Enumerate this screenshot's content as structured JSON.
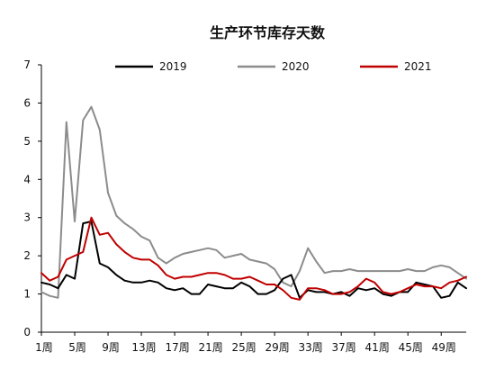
{
  "chart_data": {
    "type": "line",
    "title": "生产环节库存天数",
    "xlabel": "",
    "ylabel": "",
    "ylim": [
      0,
      7
    ],
    "yticks": [
      0,
      1,
      2,
      3,
      4,
      5,
      6,
      7
    ],
    "xlim": [
      1,
      52
    ],
    "x_tick_weeks": [
      1,
      5,
      9,
      13,
      17,
      21,
      25,
      29,
      33,
      37,
      41,
      45,
      49
    ],
    "x_tick_labels": [
      "1周",
      "5周",
      "9周",
      "13周",
      "17周",
      "21周",
      "25周",
      "29周",
      "33周",
      "37周",
      "41周",
      "45周",
      "49周"
    ],
    "grid": false,
    "legend_position": "top",
    "series": [
      {
        "name": "2019",
        "color": "#000000",
        "x": [
          1,
          2,
          3,
          4,
          5,
          6,
          7,
          8,
          9,
          10,
          11,
          12,
          13,
          14,
          15,
          16,
          17,
          18,
          19,
          20,
          21,
          22,
          23,
          24,
          25,
          26,
          27,
          28,
          29,
          30,
          31,
          32,
          33,
          34,
          35,
          36,
          37,
          38,
          39,
          40,
          41,
          42,
          43,
          44,
          45,
          46,
          47,
          48,
          49,
          50,
          51,
          52
        ],
        "values": [
          1.3,
          1.25,
          1.15,
          1.5,
          1.4,
          2.85,
          2.9,
          1.8,
          1.7,
          1.5,
          1.35,
          1.3,
          1.3,
          1.35,
          1.3,
          1.15,
          1.1,
          1.15,
          1.0,
          1.0,
          1.25,
          1.2,
          1.15,
          1.15,
          1.3,
          1.2,
          1.0,
          1.0,
          1.1,
          1.4,
          1.5,
          0.9,
          1.1,
          1.05,
          1.05,
          1.0,
          1.05,
          0.95,
          1.15,
          1.1,
          1.15,
          1.0,
          0.95,
          1.05,
          1.05,
          1.3,
          1.25,
          1.2,
          0.9,
          0.95,
          1.3,
          1.15
        ]
      },
      {
        "name": "2020",
        "color": "#8c8c8c",
        "x": [
          1,
          2,
          3,
          4,
          5,
          6,
          7,
          8,
          9,
          10,
          11,
          12,
          13,
          14,
          15,
          16,
          17,
          18,
          19,
          20,
          21,
          22,
          23,
          24,
          25,
          26,
          27,
          28,
          29,
          30,
          31,
          32,
          33,
          34,
          35,
          36,
          37,
          38,
          39,
          40,
          41,
          42,
          43,
          44,
          45,
          46,
          47,
          48,
          49,
          50,
          51,
          52
        ],
        "values": [
          1.05,
          0.95,
          0.9,
          5.5,
          2.9,
          5.55,
          5.9,
          5.3,
          3.65,
          3.05,
          2.85,
          2.7,
          2.5,
          2.4,
          1.95,
          1.8,
          1.95,
          2.05,
          2.1,
          2.15,
          2.2,
          2.15,
          1.95,
          2.0,
          2.05,
          1.9,
          1.85,
          1.8,
          1.65,
          1.3,
          1.2,
          1.6,
          2.2,
          1.85,
          1.55,
          1.6,
          1.6,
          1.65,
          1.6,
          1.6,
          1.6,
          1.6,
          1.6,
          1.6,
          1.65,
          1.6,
          1.6,
          1.7,
          1.75,
          1.7,
          1.55,
          1.4
        ]
      },
      {
        "name": "2021",
        "color": "#c00000",
        "x": [
          1,
          2,
          3,
          4,
          5,
          6,
          7,
          8,
          9,
          10,
          11,
          12,
          13,
          14,
          15,
          16,
          17,
          18,
          19,
          20,
          21,
          22,
          23,
          24,
          25,
          26,
          27,
          28,
          29,
          30,
          31,
          32,
          33,
          34,
          35,
          36,
          37,
          38,
          39,
          40,
          41,
          42,
          43,
          44,
          45,
          46,
          47,
          48,
          49,
          50,
          51,
          52
        ],
        "values": [
          1.55,
          1.35,
          1.45,
          1.9,
          2.0,
          2.1,
          3.0,
          2.55,
          2.6,
          2.3,
          2.1,
          1.95,
          1.9,
          1.9,
          1.75,
          1.5,
          1.4,
          1.45,
          1.45,
          1.5,
          1.55,
          1.55,
          1.5,
          1.4,
          1.4,
          1.45,
          1.35,
          1.25,
          1.25,
          1.1,
          0.9,
          0.85,
          1.15,
          1.15,
          1.1,
          1.0,
          1.0,
          1.05,
          1.2,
          1.4,
          1.3,
          1.05,
          1.0,
          1.05,
          1.15,
          1.25,
          1.2,
          1.2,
          1.15,
          1.3,
          1.35,
          1.45
        ]
      }
    ]
  }
}
